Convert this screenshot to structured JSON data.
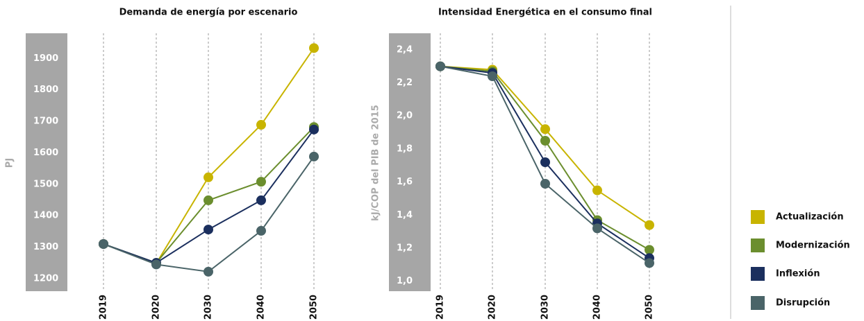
{
  "chart_data": [
    {
      "type": "line",
      "title": "Demanda de energía por escenario",
      "y_label": "PJ",
      "categories": [
        "2019",
        "2020",
        "2030",
        "2040",
        "2050"
      ],
      "ylim": [
        1160,
        1980
      ],
      "yticks": [
        1200,
        1300,
        1400,
        1500,
        1600,
        1700,
        1800,
        1900
      ],
      "series": [
        {
          "name": "Actualización",
          "color": "#c8b400",
          "values": [
            1310,
            1248,
            1522,
            1689,
            1933
          ]
        },
        {
          "name": "Modernización",
          "color": "#6b8e2e",
          "values": [
            1310,
            1250,
            1449,
            1508,
            1682
          ]
        },
        {
          "name": "Inflexión",
          "color": "#1b2f5e",
          "values": [
            1310,
            1250,
            1356,
            1449,
            1674
          ]
        },
        {
          "name": "Disrupción",
          "color": "#4a6468",
          "values": [
            1310,
            1245,
            1222,
            1352,
            1588
          ]
        }
      ]
    },
    {
      "type": "line",
      "title": "Intensidad Energética en el consumo final",
      "y_label": "kJ/COP del PIB de 2015",
      "categories": [
        "2019",
        "2020",
        "2030",
        "2040",
        "2050"
      ],
      "ylim": [
        0.94,
        2.5
      ],
      "yticks": [
        {
          "value": 1.0,
          "label": "1,0"
        },
        {
          "value": 1.2,
          "label": "1,2"
        },
        {
          "value": 1.4,
          "label": "1,4"
        },
        {
          "value": 1.6,
          "label": "1,6"
        },
        {
          "value": 1.8,
          "label": "1,8"
        },
        {
          "value": 2.0,
          "label": "2,0"
        },
        {
          "value": 2.2,
          "label": "2,2"
        },
        {
          "value": 2.4,
          "label": "2,4"
        }
      ],
      "series": [
        {
          "name": "Actualización",
          "color": "#c8b400",
          "values": [
            2.3,
            2.28,
            1.92,
            1.55,
            1.34
          ]
        },
        {
          "name": "Modernización",
          "color": "#6b8e2e",
          "values": [
            2.3,
            2.27,
            1.85,
            1.37,
            1.19
          ]
        },
        {
          "name": "Inflexión",
          "color": "#1b2f5e",
          "values": [
            2.3,
            2.26,
            1.72,
            1.35,
            1.14
          ]
        },
        {
          "name": "Disrupción",
          "color": "#4a6468",
          "values": [
            2.3,
            2.24,
            1.59,
            1.32,
            1.11
          ]
        }
      ]
    }
  ]
}
